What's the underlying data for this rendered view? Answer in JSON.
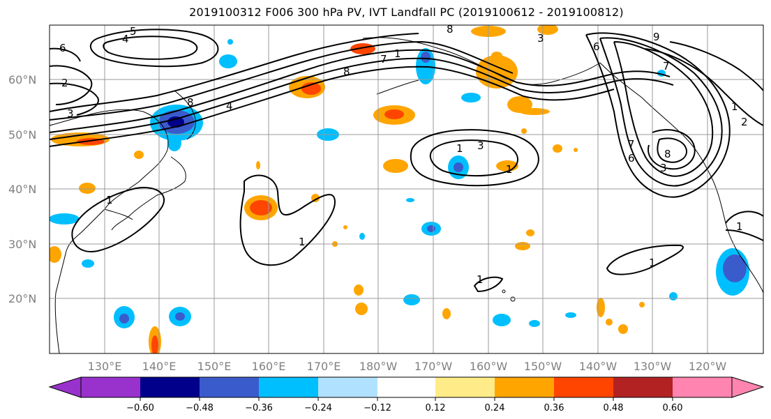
{
  "title": "2019100312 F006 300 hPa PV, IVT Landfall PC (2019100612 - 2019100812)",
  "lat_labels": [
    "60°N",
    "50°N",
    "40°N",
    "30°N",
    "20°N"
  ],
  "lon_labels": [
    "130°E",
    "140°E",
    "150°E",
    "160°E",
    "170°E",
    "180°W",
    "170°W",
    "160°W",
    "150°W",
    "140°W",
    "130°W",
    "120°W"
  ],
  "colorbar": {
    "colors": [
      "#9932cc",
      "#00008b",
      "#3a5bcc",
      "#00bfff",
      "#b0e2ff",
      "#ffffff",
      "#ffeb87",
      "#ffa500",
      "#ff4500",
      "#b22222",
      "#ff85b0"
    ],
    "tick_labels": [
      "-0.60",
      "-0.48",
      "-0.36",
      "-0.24",
      "-0.12",
      "0.12",
      "0.24",
      "0.36",
      "0.48",
      "0.60"
    ],
    "tick_display": [
      "−0.60",
      "−0.48",
      "−0.36",
      "−0.24",
      "−0.12",
      "0.12",
      "0.24",
      "0.36",
      "0.48",
      "0.60"
    ]
  },
  "contour_labels": [
    "5",
    "4",
    "6",
    "2",
    "3",
    "8",
    "4",
    "7",
    "8",
    "1",
    "8",
    "9",
    "6",
    "3",
    "7",
    "3",
    "1",
    "1",
    "1",
    "1",
    "1",
    "1",
    "2",
    "1",
    "8",
    "7",
    "3",
    "6",
    "1"
  ],
  "map": {
    "extent_lon": [
      120,
      250
    ],
    "extent_lat": [
      10,
      70
    ],
    "grid_lon_step": 10,
    "grid_lat_step": 10
  }
}
